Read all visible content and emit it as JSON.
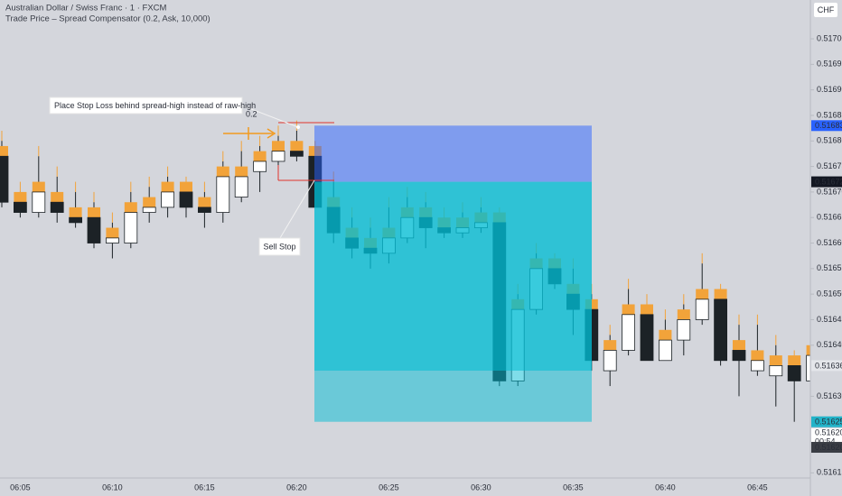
{
  "header": {
    "symbol": "Australian Dollar / Swiss Franc · 1 · FXCM",
    "indicator": "Trade Price – Spread Compensator (0.2, Ask, 10,000)",
    "currency": "CHF"
  },
  "chart_data": {
    "type": "candlestick",
    "categories": [
      null,
      "06:05",
      null,
      null,
      null,
      null,
      "06:10",
      null,
      null,
      null,
      null,
      "06:15",
      null,
      null,
      null,
      null,
      "06:20",
      null,
      null,
      null,
      null,
      "06:25",
      null,
      null,
      null,
      null,
      "06:30",
      null,
      null,
      null,
      null,
      "06:35",
      null,
      null,
      null,
      null,
      "06:40",
      null,
      null,
      null,
      null,
      "06:45",
      null,
      null,
      null
    ],
    "open": [
      0.51677,
      0.51668,
      0.51666,
      0.51668,
      0.51665,
      0.51665,
      0.5166,
      0.5166,
      0.51666,
      0.51667,
      0.5167,
      0.51667,
      0.51666,
      0.51669,
      0.51674,
      0.51676,
      0.51678,
      0.51677,
      0.51667,
      0.51661,
      0.51659,
      0.51658,
      0.51661,
      0.51665,
      0.51663,
      0.51662,
      0.51663,
      0.51664,
      0.51633,
      0.51647,
      0.51655,
      0.5165,
      0.51647,
      0.51635,
      0.51639,
      0.51646,
      0.51637,
      0.51641,
      0.51645,
      0.51649,
      0.51639,
      0.51635,
      0.51634,
      0.51636,
      0.51633
    ],
    "high": [
      0.5168,
      0.5167,
      0.51677,
      0.51673,
      0.5167,
      0.51668,
      0.51664,
      0.5167,
      0.51671,
      0.51673,
      0.51671,
      0.5167,
      0.51676,
      0.51678,
      0.51679,
      0.51681,
      0.51682,
      0.51678,
      0.51672,
      0.51665,
      0.51663,
      0.51667,
      0.51669,
      0.51668,
      0.51665,
      0.51666,
      0.51667,
      0.51665,
      0.5165,
      0.51658,
      0.51656,
      0.51655,
      0.5165,
      0.51642,
      0.51651,
      0.51648,
      0.51645,
      0.51648,
      0.51656,
      0.5165,
      0.51644,
      0.51644,
      0.5164,
      0.51637,
      0.51642
    ],
    "low": [
      0.51667,
      0.51665,
      0.51665,
      0.51664,
      0.51663,
      0.51659,
      0.51657,
      0.51659,
      0.51664,
      0.51665,
      0.51665,
      0.51663,
      0.51664,
      0.51668,
      0.5167,
      0.51674,
      0.51676,
      0.51667,
      0.5166,
      0.51657,
      0.51655,
      0.51656,
      0.5166,
      0.51659,
      0.51661,
      0.51661,
      0.51662,
      0.51632,
      0.51632,
      0.51646,
      0.51651,
      0.51642,
      0.51635,
      0.51632,
      0.51638,
      0.51637,
      0.51637,
      0.51638,
      0.51644,
      0.51636,
      0.5163,
      0.51634,
      0.51628,
      0.51625,
      0.5163
    ],
    "close": [
      0.51668,
      0.51666,
      0.5167,
      0.51666,
      0.51664,
      0.5166,
      0.51661,
      0.51666,
      0.51667,
      0.5167,
      0.51667,
      0.51666,
      0.51673,
      0.51673,
      0.51676,
      0.51678,
      0.51677,
      0.51667,
      0.51662,
      0.51659,
      0.51658,
      0.51661,
      0.51665,
      0.51663,
      0.51662,
      0.51663,
      0.51664,
      0.51633,
      0.51647,
      0.51655,
      0.51652,
      0.51647,
      0.51637,
      0.51639,
      0.51646,
      0.51637,
      0.51641,
      0.51645,
      0.51649,
      0.51637,
      0.51637,
      0.51637,
      0.51636,
      0.51633,
      0.51638
    ],
    "spread": 2e-05,
    "up_color": "#ffffff",
    "down_color": "#1c2226",
    "spread_color": "#f2a33a",
    "ylim": [
      0.51614,
      0.517076
    ],
    "yticks": [
      0.51615,
      {
        "value": 0.5163,
        "label": "0.51630"
      },
      {
        "value": 0.5164,
        "label": "0.51640"
      },
      0.51645,
      {
        "value": 0.5165,
        "label": "0.51650"
      },
      0.51655,
      {
        "value": 0.5166,
        "label": "0.51660"
      },
      0.51665,
      {
        "value": 0.5167,
        "label": "0.51670"
      },
      0.51675,
      {
        "value": 0.5168,
        "label": "0.51680"
      },
      0.51685,
      {
        "value": 0.5169,
        "label": "0.51690"
      },
      0.51695,
      {
        "value": 0.517,
        "label": "0.51700"
      }
    ],
    "grid": false,
    "position": {
      "stop": 0.51683,
      "entry": 0.51672,
      "partial": 0.51635,
      "target": 0.51625,
      "stop_color": "rgba(41,98,255,0.5)",
      "profit_color": "rgba(0,188,212,0.78)",
      "partial_color": "rgba(0,188,212,0.5)"
    },
    "price_labels": [
      {
        "value": 0.51683,
        "color": "#2962ff",
        "text_color": "#ffffff"
      },
      {
        "value": 0.51672,
        "color": "#131722",
        "text_color": "#ffffff"
      },
      {
        "value": 0.51636,
        "color": "#e4e6ea",
        "text_color": "#9aa0a8"
      },
      {
        "value": 0.51625,
        "color": "#22b3c8",
        "text_color": "#ffffff"
      },
      {
        "value": 0.5162,
        "label": "0.51620",
        "countdown": "00:54",
        "color": "#ffffff",
        "text_color": "#131722"
      },
      {
        "value": 0.5162,
        "label": "0.51620",
        "color": "#3a3d44",
        "text_color": "#ffffff"
      }
    ],
    "annotations": {
      "note": "Place Stop Loss behind spread-high instead of raw-high",
      "spread_mark": "0.2",
      "order": "Sell Stop"
    }
  }
}
